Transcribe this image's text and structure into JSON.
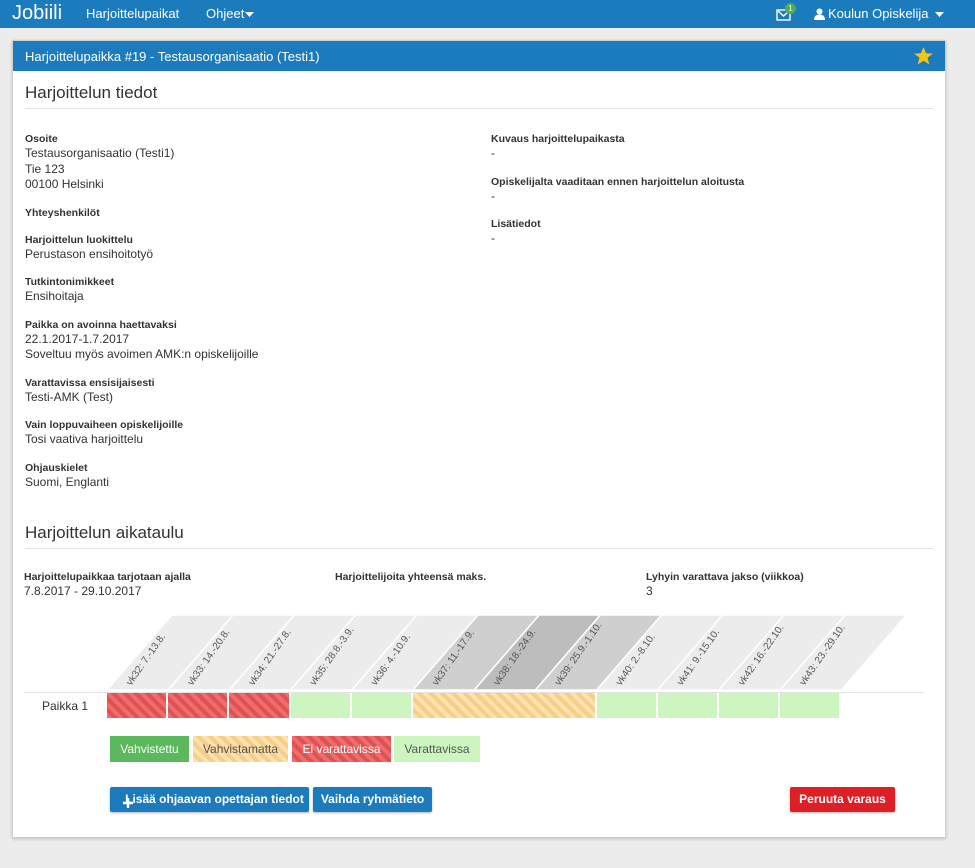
{
  "navbar": {
    "brand": "Jobiili",
    "links": [
      "Harjoittelupaikat",
      "Ohjeet"
    ],
    "badge": "1",
    "user": "Koulun Opiskelija"
  },
  "panel": {
    "title": "Harjoittelupaikka #19 - Testausorganisaatio (Testi1)",
    "details_title": "Harjoittelun tiedot",
    "left_fields": [
      {
        "label": "Osoite",
        "lines": [
          "Testausorganisaatio (Testi1)",
          "Tie 123",
          "00100 Helsinki"
        ]
      },
      {
        "label": "Yhteyshenkilöt",
        "lines": []
      },
      {
        "label": "Harjoittelun luokittelu",
        "lines": [
          "Perustason ensihoitotyö"
        ]
      },
      {
        "label": "Tutkintonimikkeet",
        "lines": [
          "Ensihoitaja"
        ]
      },
      {
        "label": "Paikka on avoinna haettavaksi",
        "lines": [
          "22.1.2017-1.7.2017",
          "Soveltuu myös avoimen AMK:n opiskelijoille"
        ]
      },
      {
        "label": "Varattavissa ensisijaisesti",
        "lines": [
          "Testi-AMK (Test)"
        ]
      },
      {
        "label": "Vain loppuvaiheen opiskelijoille",
        "lines": [
          "Tosi vaativa harjoittelu"
        ]
      },
      {
        "label": "Ohjauskielet",
        "lines": [
          "Suomi, Englanti"
        ]
      }
    ],
    "right_fields": [
      {
        "label": "Kuvaus harjoittelupaikasta",
        "lines": [
          "-"
        ]
      },
      {
        "label": "Opiskelijalta vaaditaan ennen harjoittelun aloitusta",
        "lines": [
          "-"
        ]
      },
      {
        "label": "Lisätiedot",
        "lines": [
          "-"
        ]
      }
    ],
    "schedule_title": "Harjoittelun aikataulu",
    "schedule_info": [
      {
        "label": "Harjoittelupaikkaa tarjotaan ajalla",
        "value": "7.8.2017 - 29.10.2017"
      },
      {
        "label": "Harjoittelijoita yhteensä maks.",
        "value": ""
      },
      {
        "label": "Lyhyin varattava jakso (viikkoa)",
        "value": "3"
      }
    ],
    "weeks": [
      "vk32: 7.-13.8.",
      "vk33: 14.-20.8.",
      "vk34: 21.-27.8.",
      "vk35: 28.8.-3.9.",
      "vk36: 4.-10.9.",
      "vk37: 11.-17.9.",
      "vk38: 18.-24.9.",
      "vk39: 25.9.-1.10.",
      "vk40: 2.-8.10.",
      "vk41: 9.-15.10.",
      "vk42: 16.-22.10.",
      "vk43: 23.-29.10."
    ],
    "row_label": "Paikka 1",
    "legend": [
      "Vahvistettu",
      "Vahvistamatta",
      "Ei varattavissa",
      "Varattavissa"
    ],
    "buttons": [
      "Lisää ohjaavan opettajan tiedot",
      "Vaihda ryhmätieto",
      "Peruuta varaus"
    ]
  }
}
